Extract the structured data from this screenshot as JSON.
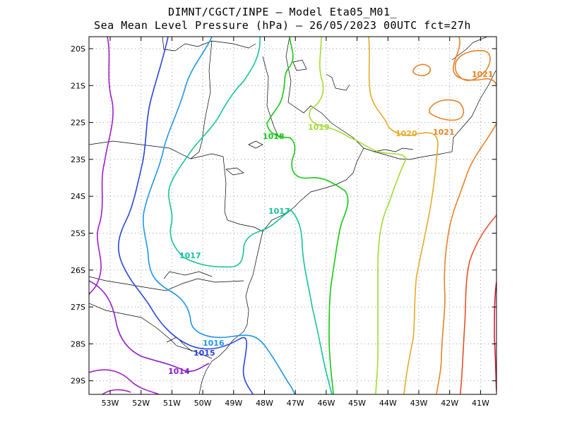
{
  "title_line1": "DIMNT/CGCT/INPE –  Model Eta05_M01_",
  "title_line2": "Sea Mean Level Pressure (hPa) – 26/05/2023 00UTC fct=27h",
  "lat_labels": [
    "20S",
    "21S",
    "22S",
    "23S",
    "24S",
    "25S",
    "26S",
    "27S",
    "28S",
    "29S"
  ],
  "lon_labels": [
    "53W",
    "52W",
    "51W",
    "50W",
    "49W",
    "48W",
    "47W",
    "46W",
    "45W",
    "44W",
    "43W",
    "42W",
    "41W"
  ],
  "contour_labels": [
    {
      "text": "1014",
      "color": "#8a1ec8"
    },
    {
      "text": "1015",
      "color": "#2846dc"
    },
    {
      "text": "1016",
      "color": "#1e96e6"
    },
    {
      "text": "1017",
      "color": "#14c39b"
    },
    {
      "text": "1017",
      "color": "#14c39b"
    },
    {
      "text": "1018",
      "color": "#14c814"
    },
    {
      "text": "1019",
      "color": "#a0dc32"
    },
    {
      "text": "1020",
      "color": "#e6aa28"
    },
    {
      "text": "1021",
      "color": "#e68228"
    },
    {
      "text": "1021",
      "color": "#e68228"
    }
  ],
  "colors": {
    "c1013": "#a01ec8",
    "c1014": "#8a1ec8",
    "c1015": "#2846dc",
    "c1016": "#1e96e6",
    "c1017": "#14c39b",
    "c1018": "#14c814",
    "c1019": "#a0dc32",
    "c1020": "#e6aa28",
    "c1021": "#e68228",
    "c1022": "#e65028",
    "c1023": "#d21e3c",
    "coast": "#000000",
    "grid": "#9a9a9a"
  }
}
